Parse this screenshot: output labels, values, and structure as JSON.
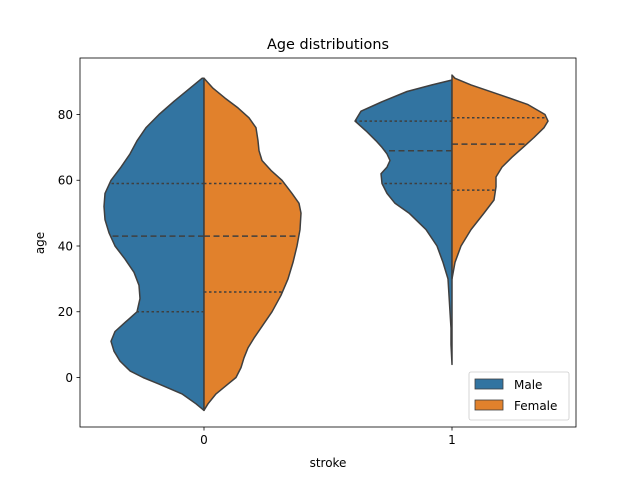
{
  "chart_data": {
    "type": "violin",
    "title": "Age distributions",
    "xlabel": "stroke",
    "ylabel": "age",
    "categories": [
      "0",
      "1"
    ],
    "ylim": [
      -15,
      95
    ],
    "yticks": [
      0,
      20,
      40,
      60,
      80
    ],
    "grid": false,
    "legend_position": "lower right",
    "series": [
      {
        "name": "Male",
        "color": "#3274a1",
        "violins": [
          {
            "category": "0",
            "quartiles": [
              20,
              43,
              59
            ],
            "profile": [
              [
                -10,
                0.0
              ],
              [
                -8,
                0.08
              ],
              [
                -5,
                0.22
              ],
              [
                -2,
                0.45
              ],
              [
                0,
                0.61
              ],
              [
                2,
                0.74
              ],
              [
                5,
                0.84
              ],
              [
                8,
                0.9
              ],
              [
                11,
                0.93
              ],
              [
                14,
                0.89
              ],
              [
                17,
                0.78
              ],
              [
                20,
                0.67
              ],
              [
                24,
                0.64
              ],
              [
                28,
                0.65
              ],
              [
                32,
                0.7
              ],
              [
                36,
                0.79
              ],
              [
                40,
                0.89
              ],
              [
                44,
                0.95
              ],
              [
                48,
                0.99
              ],
              [
                52,
                1.0
              ],
              [
                56,
                0.99
              ],
              [
                60,
                0.93
              ],
              [
                64,
                0.83
              ],
              [
                68,
                0.74
              ],
              [
                72,
                0.67
              ],
              [
                76,
                0.58
              ],
              [
                80,
                0.45
              ],
              [
                84,
                0.3
              ],
              [
                88,
                0.14
              ],
              [
                91,
                0.02
              ]
            ]
          },
          {
            "category": "1",
            "quartiles": [
              59,
              69,
              78
            ],
            "profile": [
              [
                4,
                0.0
              ],
              [
                10,
                0.01
              ],
              [
                15,
                0.01
              ],
              [
                20,
                0.02
              ],
              [
                25,
                0.03
              ],
              [
                30,
                0.04
              ],
              [
                35,
                0.09
              ],
              [
                40,
                0.15
              ],
              [
                45,
                0.26
              ],
              [
                50,
                0.43
              ],
              [
                53,
                0.57
              ],
              [
                56,
                0.65
              ],
              [
                59,
                0.7
              ],
              [
                62,
                0.71
              ],
              [
                64,
                0.65
              ],
              [
                66,
                0.62
              ],
              [
                68,
                0.65
              ],
              [
                70,
                0.7
              ],
              [
                72,
                0.76
              ],
              [
                75,
                0.86
              ],
              [
                78,
                0.97
              ],
              [
                81,
                0.91
              ],
              [
                84,
                0.69
              ],
              [
                87,
                0.45
              ],
              [
                89,
                0.2
              ],
              [
                90.5,
                0.0
              ]
            ]
          }
        ]
      },
      {
        "name": "Female",
        "color": "#e1812c",
        "violins": [
          {
            "category": "0",
            "quartiles": [
              26,
              43,
              59
            ],
            "profile": [
              [
                -10,
                0.0
              ],
              [
                -8,
                0.04
              ],
              [
                -5,
                0.12
              ],
              [
                -2,
                0.24
              ],
              [
                0,
                0.32
              ],
              [
                3,
                0.37
              ],
              [
                6,
                0.4
              ],
              [
                9,
                0.44
              ],
              [
                12,
                0.5
              ],
              [
                16,
                0.59
              ],
              [
                20,
                0.68
              ],
              [
                25,
                0.77
              ],
              [
                30,
                0.84
              ],
              [
                35,
                0.89
              ],
              [
                40,
                0.93
              ],
              [
                45,
                0.96
              ],
              [
                50,
                0.97
              ],
              [
                53,
                0.95
              ],
              [
                56,
                0.88
              ],
              [
                60,
                0.78
              ],
              [
                63,
                0.67
              ],
              [
                66,
                0.58
              ],
              [
                69,
                0.55
              ],
              [
                72,
                0.54
              ],
              [
                76,
                0.52
              ],
              [
                79,
                0.45
              ],
              [
                82,
                0.34
              ],
              [
                85,
                0.21
              ],
              [
                88,
                0.09
              ],
              [
                91,
                0.0
              ]
            ]
          },
          {
            "category": "1",
            "quartiles": [
              57,
              71,
              79
            ],
            "profile": [
              [
                30,
                0.0
              ],
              [
                35,
                0.03
              ],
              [
                40,
                0.09
              ],
              [
                45,
                0.19
              ],
              [
                50,
                0.32
              ],
              [
                54,
                0.42
              ],
              [
                58,
                0.44
              ],
              [
                61,
                0.44
              ],
              [
                64,
                0.5
              ],
              [
                67,
                0.6
              ],
              [
                70,
                0.71
              ],
              [
                73,
                0.82
              ],
              [
                76,
                0.92
              ],
              [
                78,
                0.96
              ],
              [
                80,
                0.93
              ],
              [
                83,
                0.76
              ],
              [
                86,
                0.48
              ],
              [
                89,
                0.19
              ],
              [
                91,
                0.03
              ],
              [
                92,
                0.0
              ]
            ]
          }
        ]
      }
    ]
  }
}
